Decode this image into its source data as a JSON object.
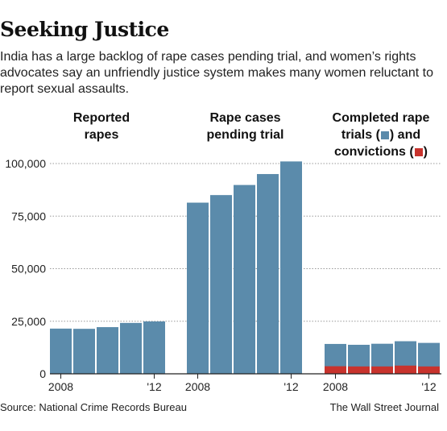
{
  "title": "Seeking Justice",
  "subtitle": "India has a large backlog of rape cases pending trial, and women’s rights advocates say an unfriendly justice system makes many women reluctant to report sexual assaults.",
  "source": "Source: National Crime Records Bureau",
  "credit": "The Wall Street Journal",
  "colors": {
    "blue": "#5b8bab",
    "red": "#c8332d"
  },
  "panels": [
    {
      "title_line1": "Reported",
      "title_line2": "rapes"
    },
    {
      "title_line1": "Rape cases",
      "title_line2": "pending trial"
    },
    {
      "title_line1": "Completed rape",
      "title_line2_a": "trials (",
      "title_line2_b": ") and",
      "title_line3_a": "convictions (",
      "title_line3_b": ")"
    }
  ],
  "chart_data": {
    "type": "bar",
    "y_ticks": [
      "100,000",
      "75,000",
      "50,000",
      "25,000",
      "0"
    ],
    "y_tick_values": [
      100000,
      75000,
      50000,
      25000,
      0
    ],
    "ylim": [
      0,
      100000
    ],
    "groups": [
      {
        "name": "Reported rapes",
        "x_labels": [
          "2008",
          "",
          "",
          "",
          "'12"
        ],
        "series": [
          {
            "color": "blue",
            "values": [
              21500,
              21400,
              22200,
              24200,
              24900
            ]
          }
        ]
      },
      {
        "name": "Rape cases pending trial",
        "x_labels": [
          "2008",
          "",
          "",
          "",
          "'12"
        ],
        "series": [
          {
            "color": "blue",
            "values": [
              81400,
              85000,
              89800,
              95000,
              101000
            ]
          }
        ]
      },
      {
        "name": "Completed rape trials and convictions",
        "x_labels": [
          "2008",
          "",
          "",
          "",
          "'12"
        ],
        "series": [
          {
            "name": "trials",
            "color": "blue",
            "values": [
              14200,
              13800,
              14300,
              15500,
              14700
            ]
          },
          {
            "name": "convictions",
            "color": "red",
            "values": [
              3600,
              3500,
              3500,
              3900,
              3500
            ]
          }
        ]
      }
    ]
  }
}
